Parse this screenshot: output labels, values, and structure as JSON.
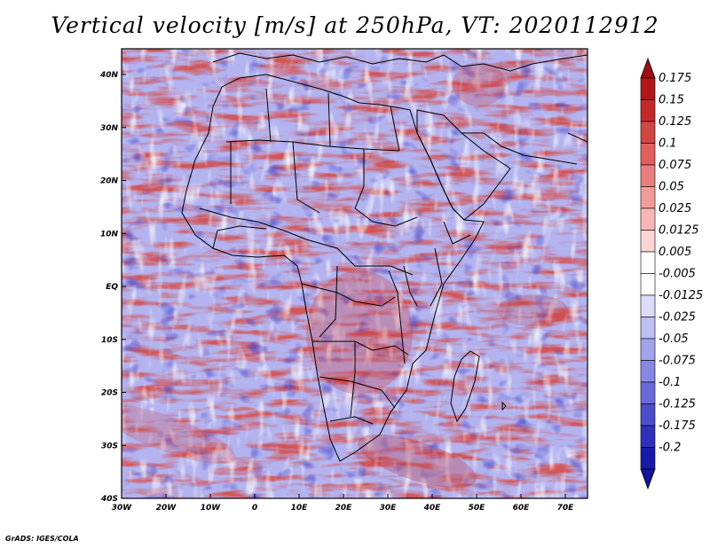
{
  "title": "Vertical velocity [m/s] at 250hPa, VT: 2020112912",
  "credit": "GrADS: IGES/COLA",
  "map": {
    "lon_range": [
      -30,
      75
    ],
    "lat_range": [
      -40,
      45
    ],
    "lat_ticks": [
      "40N",
      "30N",
      "20N",
      "10N",
      "EQ",
      "10S",
      "20S",
      "30S",
      "40S"
    ],
    "lon_ticks": [
      "30W",
      "20W",
      "10W",
      "0",
      "10E",
      "20E",
      "30E",
      "40E",
      "50E",
      "60E",
      "70E"
    ]
  },
  "colorbar": {
    "labels": [
      "0.175",
      "0.15",
      "0.125",
      "0.1",
      "0.075",
      "0.05",
      "0.025",
      "0.0125",
      "0.005",
      "-0.005",
      "-0.0125",
      "-0.025",
      "-0.05",
      "-0.075",
      "-0.1",
      "-0.125",
      "-0.175",
      "-0.2"
    ],
    "colors": [
      "#b01818",
      "#c22a2a",
      "#d34545",
      "#e06060",
      "#ea7d7d",
      "#f29a9a",
      "#f8b7b7",
      "#fcd5d5",
      "#ffffff",
      "#ffffff",
      "#dcdcf8",
      "#bfbff2",
      "#a3a3ec",
      "#8787e4",
      "#6a6ad9",
      "#4d4dcc",
      "#3030bc",
      "#1a1aa8"
    ],
    "top_color": "#9a1010",
    "bottom_color": "#14149a"
  }
}
